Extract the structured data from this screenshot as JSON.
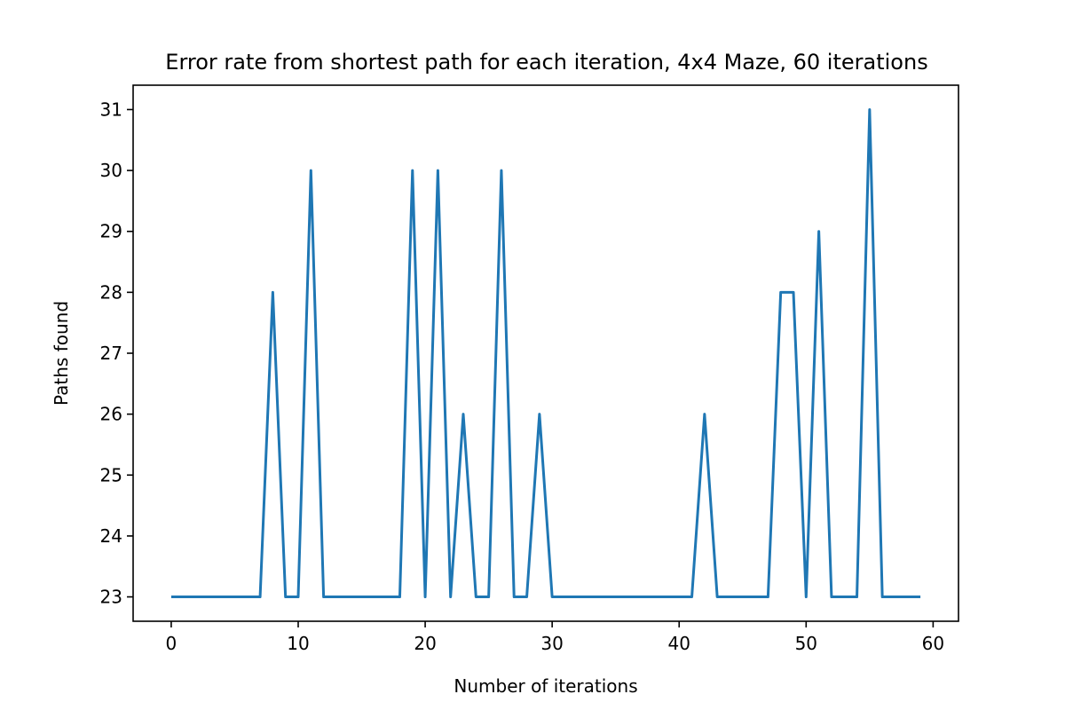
{
  "chart_data": {
    "type": "line",
    "title": "Error rate from shortest path for each iteration, 4x4 Maze, 60 iterations",
    "xlabel": "Number of iterations",
    "ylabel": "Paths found",
    "xlim": [
      -3,
      62
    ],
    "ylim": [
      22.6,
      31.4
    ],
    "xticks": [
      0,
      10,
      20,
      30,
      40,
      50,
      60
    ],
    "yticks": [
      23,
      24,
      25,
      26,
      27,
      28,
      29,
      30,
      31
    ],
    "grid": false,
    "series": [
      {
        "color": "#1f77b4",
        "x": [
          0,
          1,
          2,
          3,
          4,
          5,
          6,
          7,
          8,
          9,
          10,
          11,
          12,
          13,
          14,
          15,
          16,
          17,
          18,
          19,
          20,
          21,
          22,
          23,
          24,
          25,
          26,
          27,
          28,
          29,
          30,
          31,
          32,
          33,
          34,
          35,
          36,
          37,
          38,
          39,
          40,
          41,
          42,
          43,
          44,
          45,
          46,
          47,
          48,
          49,
          50,
          51,
          52,
          53,
          54,
          55,
          56,
          57,
          58,
          59
        ],
        "values": [
          23,
          23,
          23,
          23,
          23,
          23,
          23,
          23,
          28,
          23,
          23,
          30,
          23,
          23,
          23,
          23,
          23,
          23,
          23,
          30,
          23,
          30,
          23,
          26,
          23,
          23,
          30,
          23,
          23,
          26,
          23,
          23,
          23,
          23,
          23,
          23,
          23,
          23,
          23,
          23,
          23,
          23,
          26,
          23,
          23,
          23,
          23,
          23,
          28,
          28,
          23,
          29,
          23,
          23,
          23,
          31,
          23,
          23,
          23,
          23
        ]
      }
    ]
  }
}
